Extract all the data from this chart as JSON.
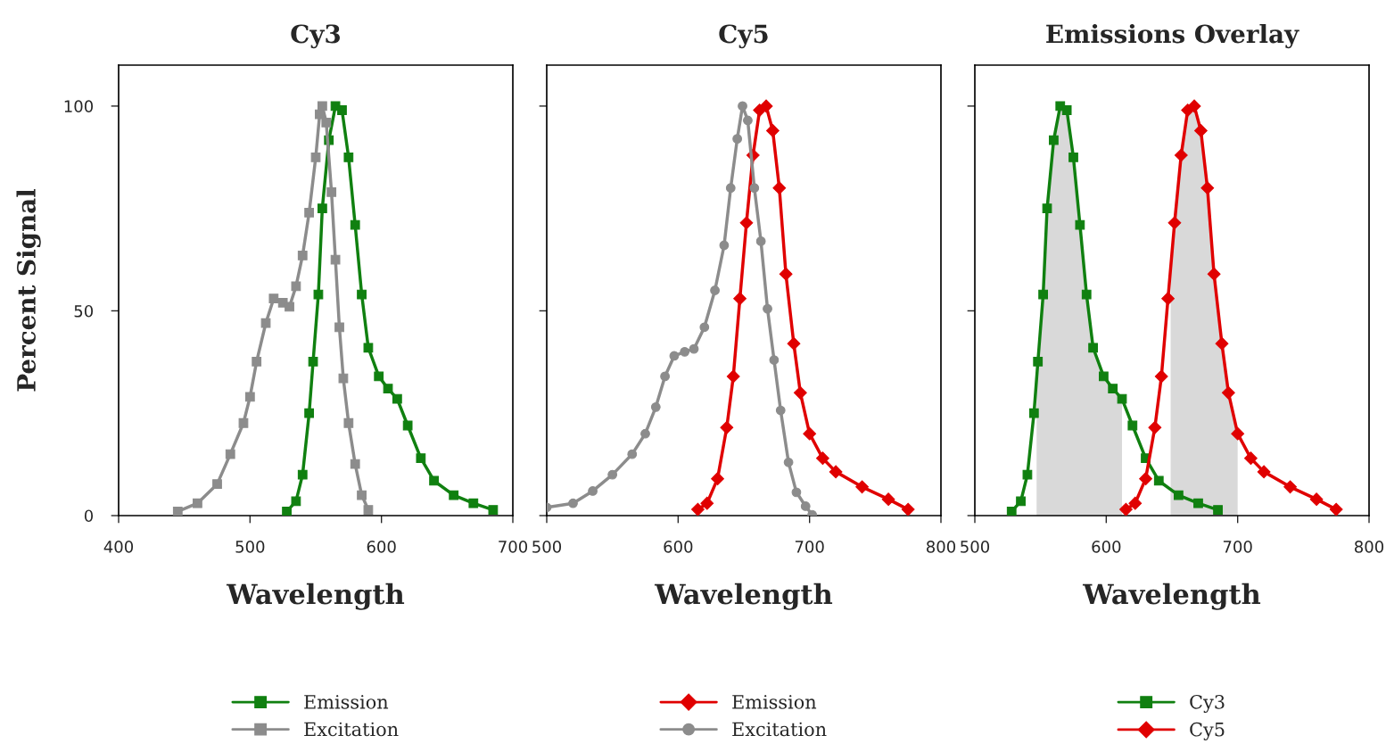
{
  "chart_data": [
    {
      "type": "line",
      "title": "Cy3",
      "xlabel": "Wavelength",
      "ylabel": "Percent Signal",
      "xlim": [
        400,
        700
      ],
      "xticks": [
        400,
        500,
        600,
        700
      ],
      "ylim": [
        0,
        110
      ],
      "yticks": [
        0,
        50,
        100
      ],
      "grid": false,
      "legend": "bottom",
      "series": [
        {
          "name": "Emission",
          "color": "#108010",
          "marker": "square",
          "x": [
            528,
            535,
            540,
            545,
            548,
            552,
            555,
            560,
            565,
            570,
            575,
            580,
            585,
            590,
            598,
            605,
            612,
            620,
            630,
            640,
            655,
            670,
            685
          ],
          "values": [
            1,
            3.5,
            10,
            25,
            37.6,
            54,
            75,
            91.7,
            100,
            99,
            87.5,
            71,
            54,
            41,
            34,
            31,
            28.5,
            22,
            14,
            8.5,
            5,
            3,
            1.4
          ]
        },
        {
          "name": "Excitation",
          "color": "#8c8c8c",
          "marker": "square",
          "x": [
            445,
            460,
            475,
            485,
            495,
            500,
            505,
            512,
            518,
            525,
            530,
            535,
            540,
            545,
            550,
            553,
            555,
            558,
            562,
            565,
            568,
            571,
            575,
            580,
            585,
            590
          ],
          "values": [
            1,
            3,
            7.7,
            15,
            22.6,
            29,
            37.6,
            47,
            53,
            52,
            51,
            56,
            63.5,
            74,
            87.5,
            98,
            100,
            96,
            79,
            62.5,
            46,
            33.5,
            22.6,
            12.6,
            5,
            1.4
          ]
        }
      ]
    },
    {
      "type": "line",
      "title": "Cy5",
      "xlabel": "Wavelength",
      "xlim": [
        500,
        800
      ],
      "xticks": [
        500,
        600,
        700,
        800
      ],
      "ylim": [
        0,
        110
      ],
      "yticks": [
        0,
        50,
        100
      ],
      "tick_labels": "x",
      "grid": false,
      "legend": "bottom",
      "series": [
        {
          "name": "Emission",
          "color": "#e00000",
          "marker": "diamond",
          "x": [
            615,
            622,
            630,
            637,
            642,
            647,
            652,
            657,
            662,
            667,
            672,
            677,
            682,
            688,
            693,
            700,
            710,
            720,
            740,
            760,
            775
          ],
          "values": [
            1.5,
            3,
            9,
            21.5,
            34,
            53,
            71.5,
            88,
            99,
            100,
            94,
            80,
            59,
            42,
            30,
            20,
            14,
            10.7,
            7,
            4,
            1.5
          ]
        },
        {
          "name": "Excitation",
          "color": "#8c8c8c",
          "marker": "circle",
          "x": [
            500,
            520,
            535,
            550,
            565,
            575,
            583,
            590,
            597,
            605,
            612,
            620,
            628,
            635,
            640,
            645,
            649,
            653,
            658,
            663,
            668,
            673,
            678,
            684,
            690,
            697,
            702
          ],
          "values": [
            2,
            3,
            6,
            10,
            15,
            20,
            26.5,
            34,
            39,
            40,
            40.7,
            46,
            55,
            66,
            80,
            92,
            100,
            96.5,
            80,
            67,
            50.5,
            38,
            25.7,
            13,
            5.7,
            2.3,
            0.2
          ]
        }
      ]
    },
    {
      "type": "line",
      "title": "Emissions Overlay",
      "xlabel": "Wavelength",
      "xlim": [
        500,
        800
      ],
      "xticks": [
        500,
        600,
        700,
        800
      ],
      "ylim": [
        0,
        110
      ],
      "yticks": [
        0,
        50,
        100
      ],
      "tick_labels": "x",
      "grid": false,
      "legend": "bottom",
      "series": [
        {
          "type": "area",
          "color": "#d9d9d9",
          "x": [
            547,
            548,
            552,
            555,
            560,
            565,
            570,
            575,
            580,
            585,
            590,
            598,
            605,
            612
          ],
          "values": [
            33,
            37.6,
            54,
            75,
            91.7,
            100,
            99,
            87.5,
            71,
            54,
            41,
            34,
            31,
            28.5
          ]
        },
        {
          "type": "area",
          "color": "#d9d9d9",
          "x": [
            649,
            652,
            657,
            662,
            667,
            672,
            677,
            682,
            688,
            693,
            700
          ],
          "values": [
            60,
            71.5,
            88,
            99,
            100,
            94,
            80,
            59,
            42,
            30,
            20
          ]
        },
        {
          "name": "Cy3",
          "color": "#108010",
          "marker": "square",
          "x": [
            528,
            535,
            540,
            545,
            548,
            552,
            555,
            560,
            565,
            570,
            575,
            580,
            585,
            590,
            598,
            605,
            612,
            620,
            630,
            640,
            655,
            670,
            685
          ],
          "values": [
            1,
            3.5,
            10,
            25,
            37.6,
            54,
            75,
            91.7,
            100,
            99,
            87.5,
            71,
            54,
            41,
            34,
            31,
            28.5,
            22,
            14,
            8.5,
            5,
            3,
            1.4
          ]
        },
        {
          "name": "Cy5",
          "color": "#e00000",
          "marker": "diamond",
          "x": [
            615,
            622,
            630,
            637,
            642,
            647,
            652,
            657,
            662,
            667,
            672,
            677,
            682,
            688,
            693,
            700,
            710,
            720,
            740,
            760,
            775
          ],
          "values": [
            1.5,
            3,
            9,
            21.5,
            34,
            53,
            71.5,
            88,
            99,
            100,
            94,
            80,
            59,
            42,
            30,
            20,
            14,
            10.7,
            7,
            4,
            1.5
          ]
        }
      ]
    }
  ]
}
